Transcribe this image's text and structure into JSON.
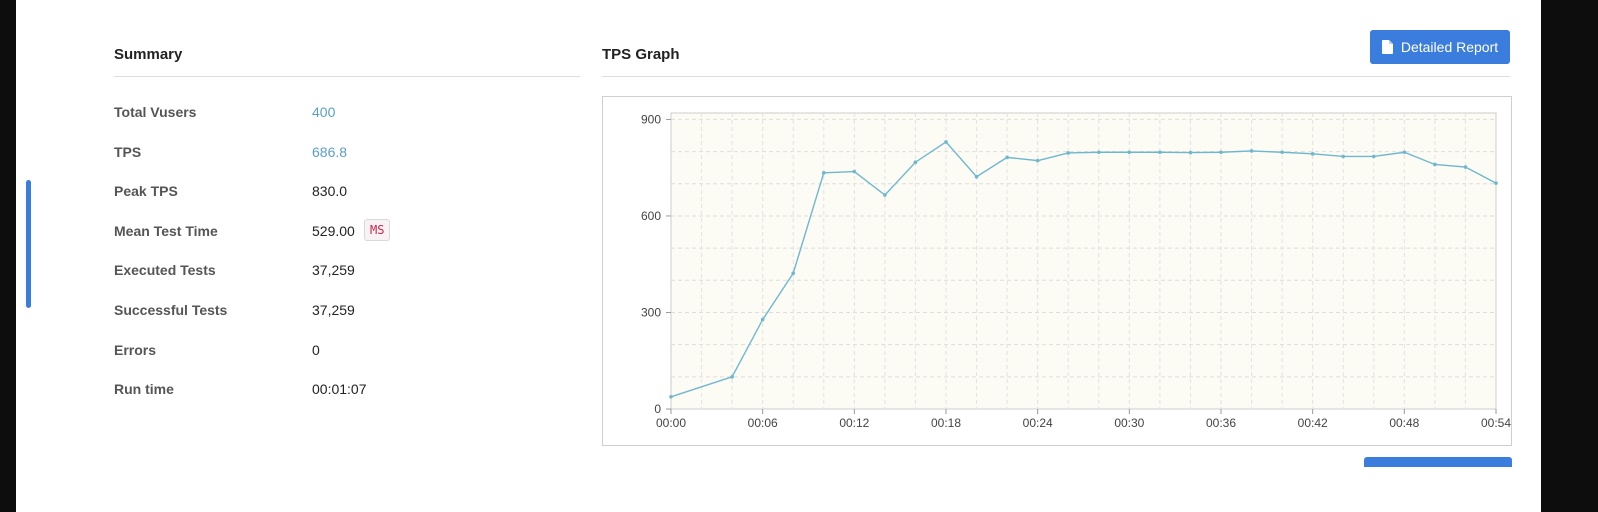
{
  "summary": {
    "title": "Summary",
    "rows": [
      {
        "label": "Total Vusers",
        "value": "400",
        "link": true
      },
      {
        "label": "TPS",
        "value": "686.8",
        "link": true
      },
      {
        "label": "Peak TPS",
        "value": "830.0",
        "link": false
      },
      {
        "label": "Mean Test Time",
        "value": "529.00",
        "unit": "MS",
        "link": false
      },
      {
        "label": "Executed Tests",
        "value": "37,259",
        "link": false
      },
      {
        "label": "Successful Tests",
        "value": "37,259",
        "link": false
      },
      {
        "label": "Errors",
        "value": "0",
        "link": false
      },
      {
        "label": "Run time",
        "value": "00:01:07",
        "link": false
      }
    ]
  },
  "tps": {
    "title": "TPS Graph",
    "report_button": "Detailed Report",
    "report_icon": "file-icon"
  },
  "colors": {
    "accent": "#3b7ddd",
    "link": "#5b9ec9",
    "series_line": "#6fb7cf",
    "plot_background": "#fcfbf4",
    "badge_text": "#c7254e"
  },
  "chart_data": {
    "type": "line",
    "xlabel": "",
    "ylabel": "",
    "x_ticks": [
      "00:00",
      "00:06",
      "00:12",
      "00:18",
      "00:24",
      "00:30",
      "00:36",
      "00:42",
      "00:48",
      "00:54"
    ],
    "y_ticks": [
      0,
      300,
      600,
      900
    ],
    "xlim": [
      0,
      54
    ],
    "ylim": [
      0,
      920
    ],
    "grid": true,
    "x": [
      0,
      4,
      6,
      8,
      10,
      12,
      14,
      16,
      18,
      20,
      22,
      24,
      26,
      28,
      30,
      32,
      34,
      36,
      38,
      40,
      42,
      44,
      46,
      48,
      50,
      52,
      54
    ],
    "series": [
      {
        "values": [
          38,
          100,
          278,
          422,
          734,
          738,
          665,
          767,
          830,
          722,
          782,
          772,
          796,
          798,
          798,
          798,
          797,
          798,
          802,
          798,
          793,
          785,
          785,
          798,
          760,
          752,
          702
        ]
      }
    ]
  }
}
